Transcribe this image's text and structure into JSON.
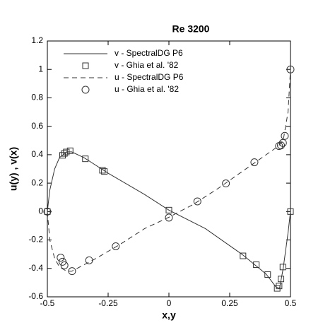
{
  "chart_data": {
    "type": "line",
    "title": "Re 3200",
    "xlabel": "x,y",
    "ylabel": "u(y) , v(x)",
    "xlim": [
      -0.5,
      0.5
    ],
    "ylim": [
      -0.6,
      1.2
    ],
    "xticks": [
      -0.5,
      -0.25,
      0,
      0.25,
      0.5
    ],
    "yticks": [
      -0.6,
      -0.4,
      -0.2,
      0,
      0.2,
      0.4,
      0.6,
      0.8,
      1,
      1.2
    ],
    "legend": "upper left",
    "series": [
      {
        "name": "v - SpectralDG P6",
        "color": "#333333",
        "style": "solid",
        "x": [
          -0.5,
          -0.49,
          -0.47,
          -0.45,
          -0.42,
          -0.4,
          -0.35,
          -0.25,
          -0.1,
          0,
          0.15,
          0.3,
          0.4,
          0.44,
          0.455,
          0.47,
          0.49,
          0.5
        ],
        "values": [
          0,
          0.15,
          0.3,
          0.38,
          0.42,
          0.42,
          0.38,
          0.27,
          0.12,
          0.01,
          -0.12,
          -0.3,
          -0.44,
          -0.53,
          -0.54,
          -0.4,
          -0.15,
          0
        ]
      },
      {
        "name": "v - Ghia et al. '82",
        "color": "#333333",
        "style": "square",
        "x": [
          0.5,
          0.4688,
          0.4609,
          0.4531,
          0.4453,
          0.4063,
          0.3594,
          0.3047,
          0,
          -0.2656,
          -0.2734,
          -0.3437,
          -0.4062,
          -0.4219,
          -0.4297,
          -0.4375,
          -0.5
        ],
        "values": [
          0,
          -0.39017,
          -0.47425,
          -0.52357,
          -0.54053,
          -0.44307,
          -0.37401,
          -0.31184,
          0.00999,
          0.28188,
          0.2903,
          0.37119,
          0.42768,
          0.41906,
          0.40917,
          0.3956,
          0
        ]
      },
      {
        "name": "u - SpectralDG P6",
        "color": "#333333",
        "style": "dashed",
        "x": [
          -0.5,
          -0.49,
          -0.47,
          -0.45,
          -0.42,
          -0.4,
          -0.3,
          -0.2,
          -0.1,
          0,
          0.1,
          0.2,
          0.3,
          0.4,
          0.45,
          0.47,
          0.49,
          0.5
        ],
        "values": [
          0,
          -0.2,
          -0.33,
          -0.39,
          -0.42,
          -0.42,
          -0.33,
          -0.23,
          -0.12,
          -0.04,
          0.05,
          0.16,
          0.28,
          0.4,
          0.46,
          0.5,
          0.7,
          1
        ]
      },
      {
        "name": "u - Ghia et al. '82",
        "color": "#333333",
        "style": "circle",
        "x": [
          0.5,
          0.4766,
          0.4688,
          0.4609,
          0.4531,
          0.3516,
          0.2344,
          0.1172,
          0,
          -0.2187,
          -0.3281,
          -0.3984,
          -0.4297,
          -0.4375,
          -0.4453,
          -0.5
        ],
        "values": [
          1,
          0.53236,
          0.48296,
          0.46547,
          0.46101,
          0.34682,
          0.19791,
          0.07156,
          -0.04272,
          -0.24427,
          -0.34323,
          -0.41933,
          -0.37827,
          -0.35344,
          -0.32407,
          0
        ]
      }
    ]
  }
}
